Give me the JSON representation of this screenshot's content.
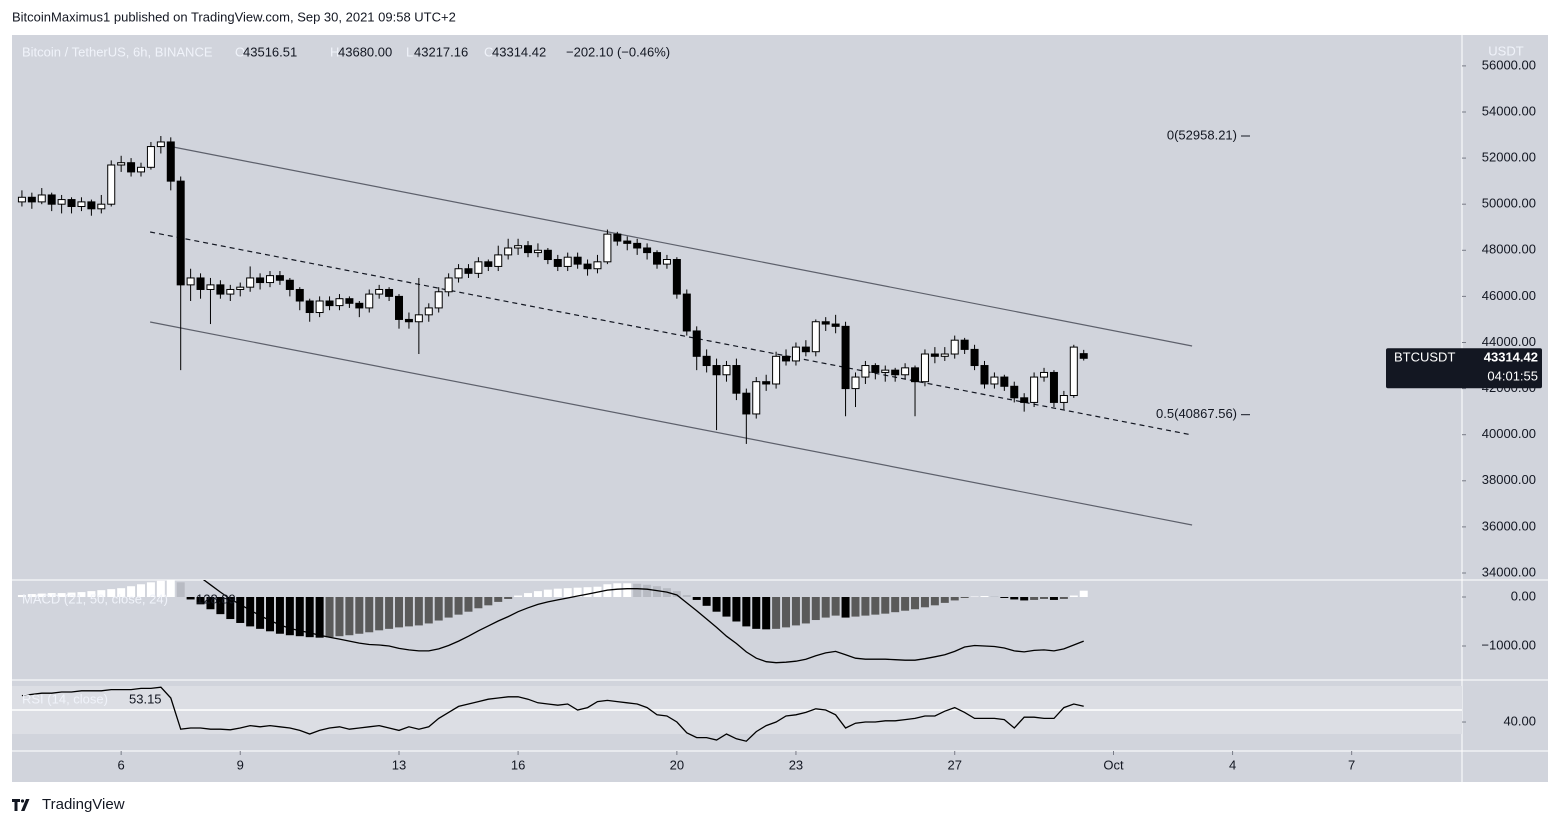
{
  "publisher": "BitcoinMaximus1 published on TradingView.com, Sep 30, 2021 09:58 UTC+2",
  "brand": "TradingView",
  "chart_data": {
    "type": "candlestick",
    "legend": {
      "title": "Bitcoin / TetherUS, 6h, BINANCE",
      "ohlc_letters": [
        "O",
        "H",
        "L",
        "C"
      ],
      "ohlc_labels": [
        "43516.51",
        "43680.00",
        "43217.16",
        "43314.42"
      ],
      "change": "−202.10 (−0.46%)"
    },
    "unit": "USDT",
    "symbol": "BTCUSDT",
    "countdown": "04:01:55",
    "colors": {
      "up": "#ffffff",
      "down": "#000000",
      "border": "#000000",
      "line": "#000000",
      "trend": "#5d606b"
    },
    "xlim": [
      3.25,
      39.78
    ],
    "xticks": [
      6,
      9,
      13,
      16,
      20,
      23,
      27,
      {
        "value": 31,
        "label": "Oct"
      },
      {
        "value": 34,
        "label": "4"
      },
      {
        "value": 37,
        "label": "7"
      }
    ],
    "ylim": [
      33696,
      57340
    ],
    "yticks": [
      {
        "value": 34000,
        "label": "34000.00"
      },
      {
        "value": 36000,
        "label": "36000.00"
      },
      {
        "value": 38000,
        "label": "38000.00"
      },
      {
        "value": 40000,
        "label": "40000.00"
      },
      {
        "value": 42000,
        "label": "42000.00"
      },
      {
        "value": 44000,
        "label": "44000.00"
      },
      {
        "value": 46000,
        "label": "46000.00"
      },
      {
        "value": 48000,
        "label": "48000.00"
      },
      {
        "value": 50000,
        "label": "50000.00"
      },
      {
        "value": 52000,
        "label": "52000.00"
      },
      {
        "value": 54000,
        "label": "54000.00"
      },
      {
        "value": 56000,
        "label": "56000.00"
      }
    ],
    "x": [
      3.5,
      3.75,
      4,
      4.25,
      4.5,
      4.75,
      5,
      5.25,
      5.5,
      5.75,
      6,
      6.25,
      6.5,
      6.75,
      7,
      7.25,
      7.5,
      7.75,
      8,
      8.25,
      8.5,
      8.75,
      9,
      9.25,
      9.5,
      9.75,
      10,
      10.25,
      10.5,
      10.75,
      11,
      11.25,
      11.5,
      11.75,
      12,
      12.25,
      12.5,
      12.75,
      13,
      13.25,
      13.5,
      13.75,
      14,
      14.25,
      14.5,
      14.75,
      15,
      15.25,
      15.5,
      15.75,
      16,
      16.25,
      16.5,
      16.75,
      17,
      17.25,
      17.5,
      17.75,
      18,
      18.25,
      18.5,
      18.75,
      19,
      19.25,
      19.5,
      19.75,
      20,
      20.25,
      20.5,
      20.75,
      21,
      21.25,
      21.5,
      21.75,
      22,
      22.25,
      22.5,
      22.75,
      23,
      23.25,
      23.5,
      23.75,
      24,
      24.25,
      24.5,
      24.75,
      25,
      25.25,
      25.5,
      25.75,
      26,
      26.25,
      26.5,
      26.75,
      27,
      27.25,
      27.5,
      27.75,
      28,
      28.25,
      28.5,
      28.75,
      29,
      29.25,
      29.5,
      29.75,
      30,
      30.25
    ],
    "ohlc": [
      [
        50100,
        50600,
        49900,
        50300
      ],
      [
        50300,
        50500,
        49800,
        50100
      ],
      [
        50100,
        50700,
        50000,
        50400
      ],
      [
        50400,
        50500,
        49700,
        50000
      ],
      [
        50000,
        50400,
        49600,
        50200
      ],
      [
        50200,
        50300,
        49600,
        49900
      ],
      [
        49900,
        50300,
        49700,
        50100
      ],
      [
        50100,
        50200,
        49500,
        49800
      ],
      [
        49800,
        50400,
        49600,
        50000
      ],
      [
        50000,
        51900,
        49900,
        51700
      ],
      [
        51700,
        52100,
        51400,
        51800
      ],
      [
        51800,
        52000,
        51200,
        51400
      ],
      [
        51400,
        51800,
        51200,
        51600
      ],
      [
        51600,
        52700,
        51500,
        52500
      ],
      [
        52500,
        52958.21,
        52200,
        52700
      ],
      [
        52700,
        52900,
        50600,
        51000
      ],
      [
        51000,
        51200,
        42800,
        46500
      ],
      [
        46500,
        47200,
        45800,
        46800
      ],
      [
        46800,
        47000,
        45900,
        46300
      ],
      [
        46300,
        46800,
        44800,
        46500
      ],
      [
        46500,
        46700,
        45900,
        46100
      ],
      [
        46100,
        46500,
        45800,
        46300
      ],
      [
        46300,
        46600,
        46000,
        46400
      ],
      [
        46400,
        47300,
        46200,
        46800
      ],
      [
        46800,
        47000,
        46300,
        46600
      ],
      [
        46600,
        47100,
        46400,
        46900
      ],
      [
        46900,
        47100,
        46500,
        46700
      ],
      [
        46700,
        46800,
        46000,
        46300
      ],
      [
        46300,
        46400,
        45400,
        45800
      ],
      [
        45800,
        45900,
        44900,
        45300
      ],
      [
        45300,
        46000,
        45100,
        45800
      ],
      [
        45800,
        46000,
        45400,
        45600
      ],
      [
        45600,
        46100,
        45400,
        45900
      ],
      [
        45900,
        46000,
        45500,
        45700
      ],
      [
        45700,
        45800,
        45100,
        45500
      ],
      [
        45500,
        46300,
        45300,
        46100
      ],
      [
        46100,
        46500,
        45900,
        46300
      ],
      [
        46300,
        46400,
        45800,
        46000
      ],
      [
        46000,
        46100,
        44600,
        45000
      ],
      [
        45000,
        45300,
        44600,
        44900
      ],
      [
        44900,
        46800,
        43500,
        45200
      ],
      [
        45200,
        45700,
        44900,
        45500
      ],
      [
        45500,
        46400,
        45300,
        46200
      ],
      [
        46200,
        47000,
        46000,
        46800
      ],
      [
        46800,
        47400,
        46600,
        47200
      ],
      [
        47200,
        47400,
        46800,
        47000
      ],
      [
        47000,
        47700,
        46800,
        47500
      ],
      [
        47500,
        47600,
        47100,
        47300
      ],
      [
        47300,
        48200,
        47100,
        47800
      ],
      [
        47800,
        48500,
        47600,
        48100
      ],
      [
        48100,
        48500,
        47800,
        48200
      ],
      [
        48200,
        48400,
        47700,
        47900
      ],
      [
        47900,
        48300,
        47700,
        48000
      ],
      [
        48000,
        48100,
        47400,
        47600
      ],
      [
        47600,
        47800,
        47100,
        47300
      ],
      [
        47300,
        47900,
        47100,
        47700
      ],
      [
        47700,
        47900,
        47200,
        47400
      ],
      [
        47400,
        47600,
        46900,
        47200
      ],
      [
        47200,
        47800,
        47000,
        47500
      ],
      [
        47500,
        48900,
        47400,
        48700
      ],
      [
        48700,
        48800,
        48200,
        48400
      ],
      [
        48400,
        48600,
        48000,
        48300
      ],
      [
        48300,
        48500,
        47800,
        48100
      ],
      [
        48100,
        48300,
        47600,
        47900
      ],
      [
        47900,
        48000,
        47200,
        47400
      ],
      [
        47400,
        47800,
        47200,
        47600
      ],
      [
        47600,
        47700,
        45900,
        46100
      ],
      [
        46100,
        46300,
        44300,
        44500
      ],
      [
        44500,
        44700,
        42800,
        43400
      ],
      [
        43400,
        43700,
        42700,
        43000
      ],
      [
        43000,
        43300,
        40200,
        42600
      ],
      [
        42600,
        43200,
        42300,
        43000
      ],
      [
        43000,
        43300,
        41500,
        41800
      ],
      [
        41800,
        42000,
        39600,
        40900
      ],
      [
        40900,
        42500,
        40700,
        42300
      ],
      [
        42300,
        42600,
        41900,
        42200
      ],
      [
        42200,
        43600,
        42000,
        43400
      ],
      [
        43400,
        43700,
        43000,
        43200
      ],
      [
        43200,
        44000,
        43000,
        43800
      ],
      [
        43800,
        44100,
        43400,
        43600
      ],
      [
        43600,
        45000,
        43400,
        44900
      ],
      [
        44900,
        45100,
        44500,
        44800
      ],
      [
        44800,
        45200,
        44400,
        44700
      ],
      [
        44700,
        44900,
        40800,
        42000
      ],
      [
        42000,
        42700,
        41200,
        42500
      ],
      [
        42500,
        43200,
        42200,
        43000
      ],
      [
        43000,
        43100,
        42400,
        42700
      ],
      [
        42700,
        43000,
        42300,
        42800
      ],
      [
        42800,
        42900,
        42300,
        42600
      ],
      [
        42600,
        43100,
        42400,
        42900
      ],
      [
        42900,
        43000,
        40800,
        42300
      ],
      [
        42300,
        43700,
        42100,
        43500
      ],
      [
        43500,
        43800,
        43100,
        43400
      ],
      [
        43400,
        43800,
        43200,
        43500
      ],
      [
        43500,
        44300,
        43300,
        44100
      ],
      [
        44100,
        44200,
        43500,
        43700
      ],
      [
        43700,
        43900,
        42800,
        43000
      ],
      [
        43000,
        43200,
        42000,
        42200
      ],
      [
        42200,
        42700,
        42000,
        42500
      ],
      [
        42500,
        42600,
        41900,
        42100
      ],
      [
        42100,
        42300,
        41400,
        41600
      ],
      [
        41600,
        41800,
        41000,
        41400
      ],
      [
        41400,
        42700,
        41200,
        42500
      ],
      [
        42500,
        42900,
        42300,
        42700
      ],
      [
        42700,
        42800,
        41200,
        41400
      ],
      [
        41400,
        41900,
        41100,
        41700
      ],
      [
        41700,
        43900,
        41600,
        43800
      ],
      [
        43516.51,
        43680,
        43217.16,
        43314.42
      ]
    ],
    "trendlines": [
      {
        "x": [
          7.18,
          32.98
        ],
        "y": [
          52525,
          43848
        ],
        "dash": false
      },
      {
        "x": [
          6.73,
          32.98
        ],
        "y": [
          44889,
          36082
        ],
        "dash": false
      },
      {
        "x": [
          6.73,
          32.98
        ],
        "y": [
          48794,
          39987
        ],
        "dash": true
      }
    ],
    "fib": [
      {
        "label": "0(52958.21)",
        "value": 52958.21
      },
      {
        "label": "0.5(40867.56)",
        "value": 40867.56
      }
    ],
    "macd": {
      "label": "MACD (21, 50, close, 24)",
      "ylim": [
        -1694,
        347
      ],
      "yticks": [
        {
          "value": 0,
          "label": "0.00"
        },
        {
          "value": -1000,
          "label": "−1000.00"
        }
      ],
      "hist_colors": [
        "#ffffff",
        "#b8bbc3",
        "#000000",
        "#5a5a5a"
      ],
      "histogram": [
        40,
        60,
        70,
        80,
        80,
        90,
        100,
        120,
        140,
        160,
        180,
        220,
        260,
        300,
        330,
        340,
        300,
        -50,
        -150,
        -250,
        -350,
        -450,
        -530,
        -600,
        -650,
        -700,
        -750,
        -780,
        -800,
        -820,
        -830,
        -820,
        -800,
        -780,
        -750,
        -720,
        -680,
        -650,
        -620,
        -600,
        -580,
        -540,
        -480,
        -420,
        -360,
        -300,
        -230,
        -170,
        -100,
        -40,
        30,
        80,
        120,
        150,
        170,
        180,
        190,
        200,
        210,
        260,
        280,
        280,
        270,
        250,
        220,
        180,
        120,
        40,
        -60,
        -180,
        -300,
        -400,
        -500,
        -600,
        -650,
        -660,
        -650,
        -620,
        -580,
        -540,
        -470,
        -420,
        -380,
        -420,
        -400,
        -380,
        -360,
        -340,
        -310,
        -280,
        -250,
        -210,
        -170,
        -120,
        -70,
        -20,
        10,
        20,
        10,
        -20,
        -50,
        -70,
        -60,
        -40,
        -60,
        -40,
        30,
        128.89
      ],
      "line": [
        null,
        null,
        null,
        null,
        null,
        null,
        null,
        null,
        null,
        null,
        null,
        null,
        null,
        null,
        null,
        null,
        null,
        null,
        400,
        250,
        100,
        -40,
        -150,
        -270,
        -380,
        -480,
        -570,
        -640,
        -690,
        -730,
        -780,
        -820,
        -860,
        -900,
        -940,
        -970,
        -980,
        -1000,
        -1050,
        -1080,
        -1100,
        -1100,
        -1060,
        -990,
        -900,
        -800,
        -690,
        -590,
        -490,
        -400,
        -300,
        -220,
        -150,
        -100,
        -60,
        -20,
        20,
        60,
        100,
        140,
        160,
        170,
        170,
        160,
        130,
        100,
        40,
        -120,
        -280,
        -450,
        -620,
        -800,
        -950,
        -1120,
        -1250,
        -1320,
        -1340,
        -1330,
        -1310,
        -1270,
        -1200,
        -1140,
        -1110,
        -1180,
        -1250,
        -1270,
        -1270,
        -1270,
        -1280,
        -1290,
        -1290,
        -1260,
        -1220,
        -1180,
        -1110,
        -1020,
        -990,
        -1000,
        -1010,
        -1040,
        -1100,
        -1120,
        -1090,
        -1080,
        -1100,
        -1060,
        -980,
        -900
      ]
    },
    "rsi": {
      "label": "RSI (14, close)",
      "ylim": [
        16.7,
        75
      ],
      "yticks": [
        {
          "value": 40,
          "label": "40.00"
        }
      ],
      "band": [
        30,
        70
      ],
      "midline": 50,
      "values": [
        62,
        63,
        64,
        64,
        65,
        65,
        66,
        66,
        66,
        67,
        67,
        67,
        68,
        68,
        69,
        60,
        34,
        35,
        35,
        34,
        34,
        33.5,
        35,
        37,
        36,
        37,
        36,
        35,
        33,
        30,
        33,
        35,
        36,
        34,
        35,
        36,
        37,
        35,
        33,
        36,
        34,
        36,
        43,
        48,
        53,
        55,
        57,
        59,
        60,
        61,
        61,
        59,
        56,
        55,
        54,
        55,
        50,
        52,
        57,
        58,
        57,
        56,
        55,
        52,
        46,
        45,
        40,
        31,
        27,
        27,
        25,
        30,
        26,
        24,
        32,
        37,
        40,
        45,
        46,
        48,
        51,
        50,
        46,
        35,
        39,
        40,
        40,
        41,
        41,
        42,
        43,
        45,
        45,
        49,
        52,
        48,
        43,
        43,
        43,
        42,
        35,
        44,
        44,
        43,
        43,
        52,
        55,
        53.15
      ]
    }
  }
}
